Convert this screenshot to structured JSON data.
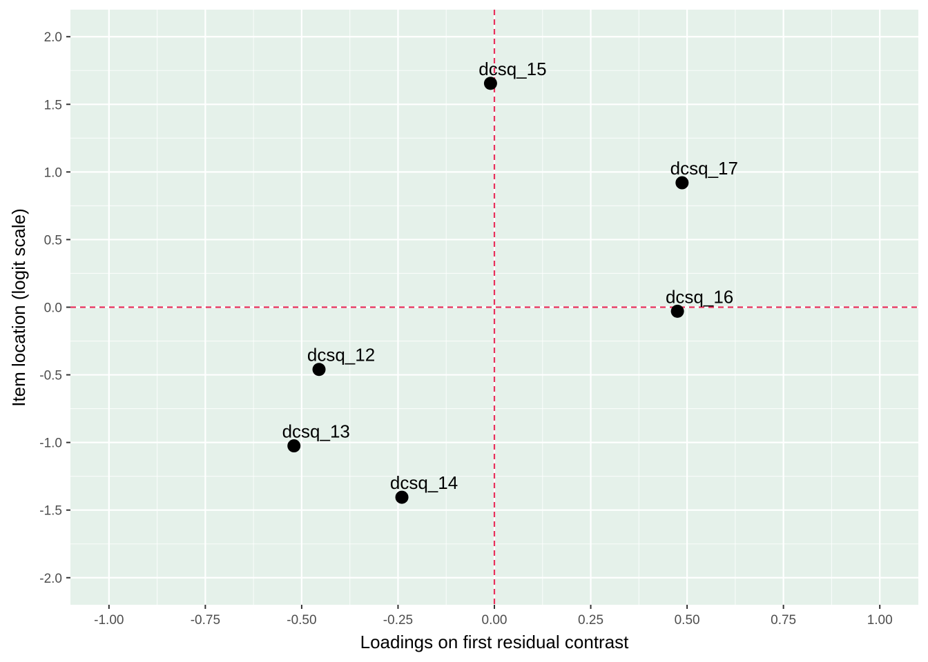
{
  "chart_data": {
    "type": "scatter",
    "xlabel": "Loadings on first residual contrast",
    "ylabel": "Item location (logit scale)",
    "xlim": [
      -1.1,
      1.1
    ],
    "ylim": [
      -2.2,
      2.2
    ],
    "x_ticks": [
      -1.0,
      -0.75,
      -0.5,
      -0.25,
      0.0,
      0.25,
      0.5,
      0.75,
      1.0
    ],
    "x_tick_labels": [
      "-1.00",
      "-0.75",
      "-0.50",
      "-0.25",
      "0.00",
      "0.25",
      "0.50",
      "0.75",
      "1.00"
    ],
    "y_ticks": [
      -2.0,
      -1.5,
      -1.0,
      -0.5,
      0.0,
      0.5,
      1.0,
      1.5,
      2.0
    ],
    "y_tick_labels": [
      "-2.0",
      "-1.5",
      "-1.0",
      "-0.5",
      "0.0",
      "0.5",
      "1.0",
      "1.5",
      "2.0"
    ],
    "grid": true,
    "reference_lines": {
      "x": 0,
      "y": 0,
      "color": "#e8305c",
      "style": "dashed"
    },
    "points": [
      {
        "label": "dcsq_12",
        "x": -0.455,
        "y": -0.46
      },
      {
        "label": "dcsq_13",
        "x": -0.52,
        "y": -1.025
      },
      {
        "label": "dcsq_14",
        "x": -0.24,
        "y": -1.405
      },
      {
        "label": "dcsq_15",
        "x": -0.01,
        "y": 1.655
      },
      {
        "label": "dcsq_16",
        "x": 0.475,
        "y": -0.03
      },
      {
        "label": "dcsq_17",
        "x": 0.487,
        "y": 0.92
      }
    ],
    "colors": {
      "panel": "#e5f1ea",
      "grid": "#ffffff",
      "point": "#000000",
      "refline": "#e8305c"
    }
  }
}
